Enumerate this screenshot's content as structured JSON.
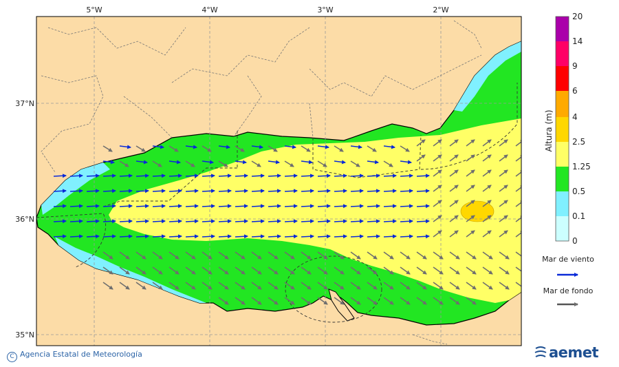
{
  "map": {
    "lon_ticks": [
      "5°W",
      "4°W",
      "3°W",
      "2°W"
    ],
    "lat_ticks": [
      "37°N",
      "36°N",
      "35°N"
    ],
    "colors": {
      "land": "#fcdca7",
      "ocean_default": "#ffff66",
      "band_0_1": "#ccffff",
      "band_01_05": "#80f0ff",
      "band_05_125": "#22e622",
      "band_125_25": "#ffff66",
      "band_25_4": "#ffd700",
      "band_4_6": "#ffaa00",
      "band_6_9": "#ff0000",
      "band_9_14": "#ff0066",
      "band_14_20": "#aa00aa",
      "wind_arrow": "#0a2ad8",
      "swell_arrow": "#6e6e6e"
    }
  },
  "legend": {
    "title": "Altura (m)",
    "levels": [
      "20",
      "14",
      "9",
      "6",
      "4",
      "2.5",
      "1.25",
      "0.5",
      "0.1",
      "0"
    ],
    "wind_label": "Mar de viento",
    "swell_label": "Mar de fondo"
  },
  "footer": {
    "copyright": "Agencia Estatal de Meteorología",
    "logo_text": "aemet"
  }
}
